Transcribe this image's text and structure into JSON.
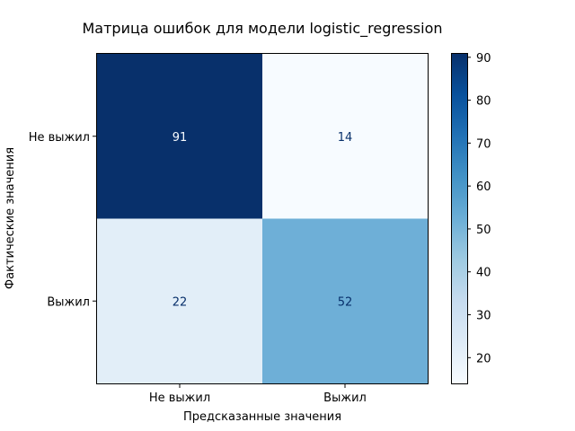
{
  "chart_data": {
    "type": "heatmap",
    "title": "Матрица ошибок для модели logistic_regression",
    "xlabel": "Предсказанные значения",
    "ylabel": "Фактические значения",
    "x_categories": [
      "Не выжил",
      "Выжил"
    ],
    "y_categories": [
      "Не выжил",
      "Выжил"
    ],
    "values": [
      [
        91,
        14
      ],
      [
        22,
        52
      ]
    ],
    "colorbar": {
      "min": 14,
      "max": 91,
      "ticks": [
        20,
        30,
        40,
        50,
        60,
        70,
        80,
        90
      ],
      "colormap": "Blues"
    },
    "grid": false
  }
}
